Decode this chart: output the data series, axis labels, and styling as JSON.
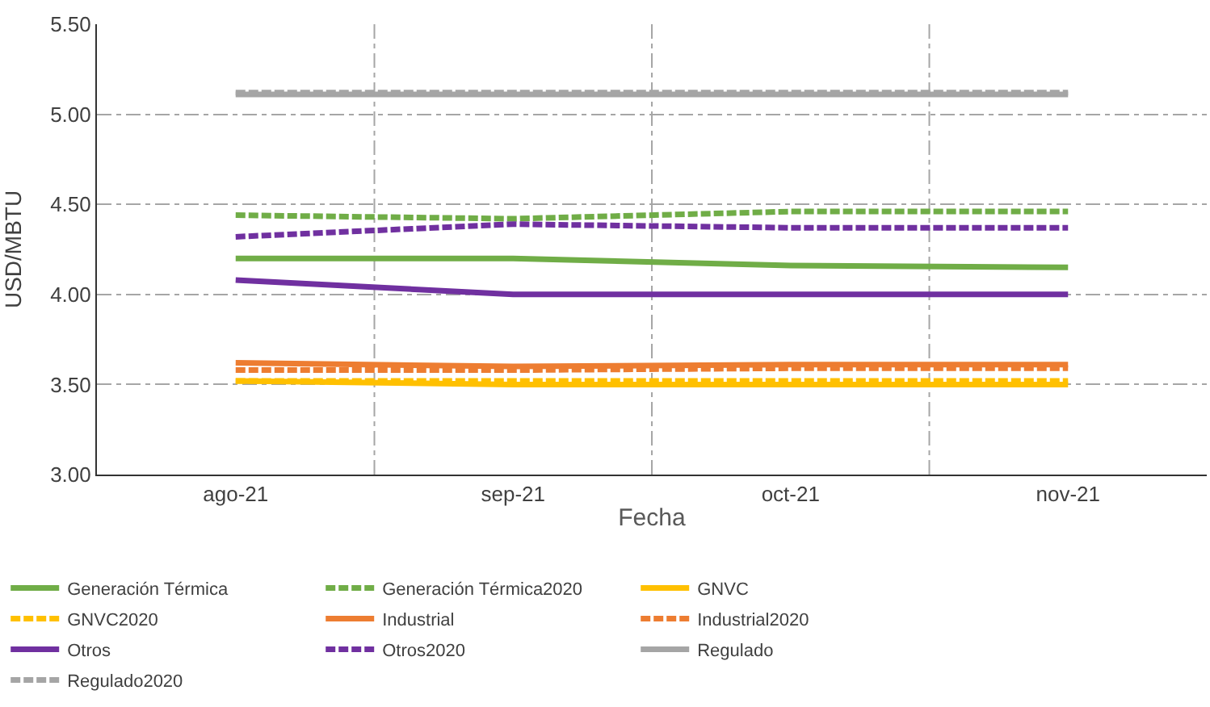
{
  "chart_data": {
    "type": "line",
    "xlabel": "Fecha",
    "ylabel": "USD/MBTU",
    "categories": [
      "ago-21",
      "sep-21",
      "oct-21",
      "nov-21"
    ],
    "ylim": [
      3.0,
      5.5
    ],
    "yticks": [
      {
        "value": 3.0,
        "label": "3.00"
      },
      {
        "value": 3.5,
        "label": "3.50"
      },
      {
        "value": 4.0,
        "label": "4.00"
      },
      {
        "value": 4.5,
        "label": "4.50"
      },
      {
        "value": 5.0,
        "label": "5.00"
      },
      {
        "value": 5.5,
        "label": "5.50"
      }
    ],
    "grid": true,
    "legend": "bottom",
    "marker": "none",
    "series": [
      {
        "name": "Generación Térmica",
        "color": "#70ad47",
        "line_style": "solid",
        "values": [
          4.2,
          4.2,
          4.16,
          4.15
        ]
      },
      {
        "name": "Generación Térmica2020",
        "color": "#70ad47",
        "line_style": "dashed",
        "values": [
          4.44,
          4.42,
          4.46,
          4.46
        ]
      },
      {
        "name": "GNVC",
        "color": "#ffc000",
        "line_style": "solid",
        "values": [
          3.52,
          3.5,
          3.5,
          3.5
        ]
      },
      {
        "name": "GNVC2020",
        "color": "#ffc000",
        "line_style": "dashed",
        "values": [
          3.52,
          3.52,
          3.52,
          3.52
        ]
      },
      {
        "name": "Industrial",
        "color": "#ed7d31",
        "line_style": "solid",
        "values": [
          3.62,
          3.6,
          3.61,
          3.61
        ]
      },
      {
        "name": "Industrial2020",
        "color": "#ed7d31",
        "line_style": "dashed",
        "values": [
          3.58,
          3.58,
          3.59,
          3.59
        ]
      },
      {
        "name": "Otros",
        "color": "#7030a0",
        "line_style": "solid",
        "values": [
          4.08,
          4.0,
          4.0,
          4.0
        ]
      },
      {
        "name": "Otros2020",
        "color": "#7030a0",
        "line_style": "dashed",
        "values": [
          4.32,
          4.39,
          4.37,
          4.37
        ]
      },
      {
        "name": "Regulado",
        "color": "#a5a5a5",
        "line_style": "solid",
        "values": [
          5.11,
          5.11,
          5.11,
          5.11
        ]
      },
      {
        "name": "Regulado2020",
        "color": "#a5a5a5",
        "line_style": "dashed",
        "values": [
          5.12,
          5.12,
          5.12,
          5.12
        ]
      }
    ]
  }
}
